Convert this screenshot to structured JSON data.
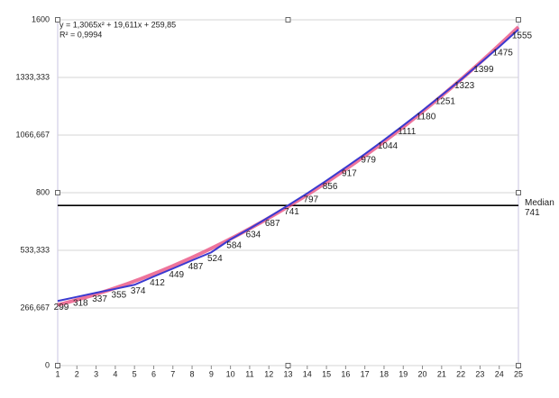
{
  "chart_data": {
    "type": "line",
    "x": [
      1,
      2,
      3,
      4,
      5,
      6,
      7,
      8,
      9,
      10,
      11,
      12,
      13,
      14,
      15,
      16,
      17,
      18,
      19,
      20,
      21,
      22,
      23,
      24,
      25
    ],
    "series": [
      {
        "color": "#3a3ad0",
        "values": [
          299,
          318,
          337,
          355,
          374,
          412,
          449,
          487,
          524,
          584,
          634,
          687,
          741,
          797,
          856,
          917,
          979,
          1044,
          1111,
          1180,
          1251,
          1323,
          1399,
          1475,
          1555
        ]
      }
    ],
    "xlim": [
      1,
      25
    ],
    "xticks": [
      1,
      2,
      3,
      4,
      5,
      6,
      7,
      8,
      9,
      10,
      11,
      12,
      13,
      14,
      15,
      16,
      17,
      18,
      19,
      20,
      21,
      22,
      23,
      24,
      25
    ],
    "ylim": [
      0,
      1600
    ],
    "yticks": [
      0,
      {
        "value": 266.667,
        "label": "266,667"
      },
      {
        "value": 533.333,
        "label": "533,333"
      },
      800,
      {
        "value": 1066.667,
        "label": "1066,667"
      },
      {
        "value": 1333.333,
        "label": "1333,333"
      },
      1600
    ],
    "grid": true,
    "trendline": {
      "equation": "y = 1,3065x² + 19,611x + 259,85",
      "r2": "R² = 0,9994",
      "coefficients": [
        1.3065,
        19.611,
        259.85
      ],
      "color": "#e8457a"
    },
    "median": {
      "label": "Median",
      "value": 741,
      "color": "#000000"
    }
  }
}
